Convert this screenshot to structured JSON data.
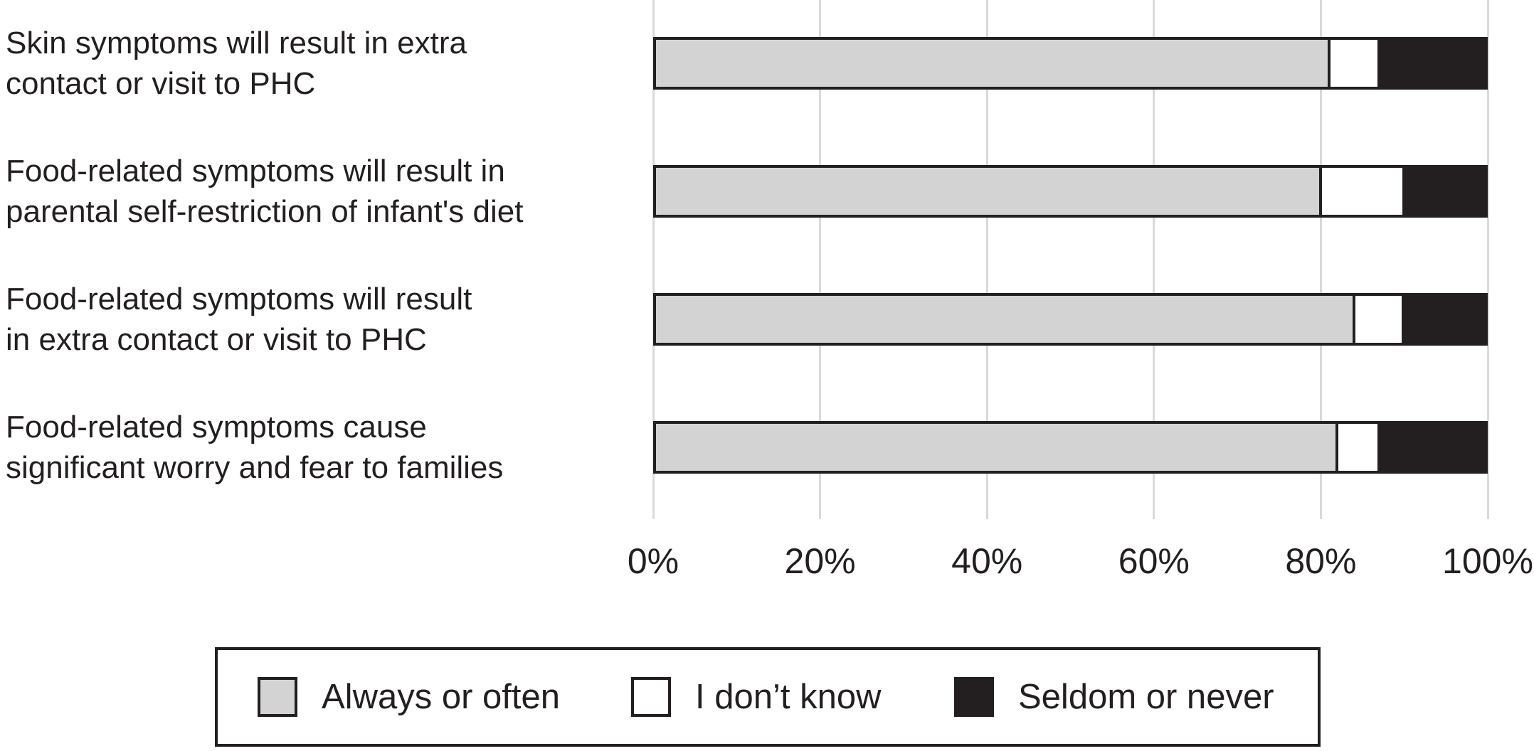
{
  "chart_data": {
    "type": "bar",
    "subtype": "horizontal-stacked",
    "title": "",
    "xlabel": "",
    "ylabel": "",
    "xlim": [
      0,
      100
    ],
    "grid": "vertical",
    "legend_position": "bottom",
    "categories": [
      "Skin symptoms will result in extra contact or visit to PHC",
      "Food-related symptoms will result in parental self-restriction of infant's diet",
      "Food-related symptoms will result in extra contact or visit to PHC",
      "Food-related symptoms cause significant worry and fear to families"
    ],
    "category_lines": [
      [
        "Skin symptoms will result in extra",
        "contact or visit to PHC"
      ],
      [
        "Food-related symptoms will result in",
        "parental self-restriction of infant's diet"
      ],
      [
        "Food-related symptoms will result",
        "in extra contact or visit to PHC"
      ],
      [
        "Food-related symptoms cause",
        "significant worry and fear to families"
      ]
    ],
    "series": [
      {
        "name": "Always or often",
        "color": "#d3d3d3",
        "values": [
          81,
          80,
          84,
          82
        ]
      },
      {
        "name": "I don’t know",
        "color": "#ffffff",
        "values": [
          6,
          10,
          6,
          5
        ]
      },
      {
        "name": "Seldom or never",
        "color": "#231f20",
        "values": [
          13,
          10,
          10,
          13
        ]
      }
    ],
    "x_ticks": [
      "0%",
      "20%",
      "40%",
      "60%",
      "80%",
      "100%"
    ],
    "x_tick_values": [
      0,
      20,
      40,
      60,
      80,
      100
    ]
  },
  "styles": {
    "bar_border_color": "#231f20",
    "grid_color": "#d9d9d9",
    "text_color": "#231f20",
    "gray_fill": "#d3d3d3",
    "white_fill": "#ffffff",
    "black_fill": "#231f20",
    "background": "#ffffff"
  }
}
